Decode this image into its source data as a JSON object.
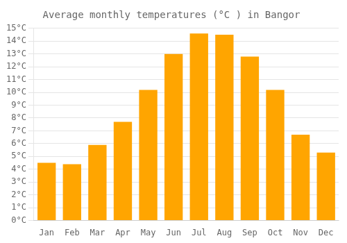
{
  "chart_data": {
    "type": "bar",
    "title": "Average monthly temperatures (°C ) in Bangor",
    "categories": [
      "Jan",
      "Feb",
      "Mar",
      "Apr",
      "May",
      "Jun",
      "Jul",
      "Aug",
      "Sep",
      "Oct",
      "Nov",
      "Dec"
    ],
    "values": [
      4.5,
      4.4,
      5.9,
      7.7,
      10.2,
      13.0,
      14.6,
      14.5,
      12.8,
      10.2,
      6.7,
      5.3
    ],
    "color": "#FFA500",
    "ylim": [
      0,
      15
    ],
    "yticks": [
      {
        "value": 0,
        "label": "0°C"
      },
      {
        "value": 1,
        "label": "1°C"
      },
      {
        "value": 2,
        "label": "2°C"
      },
      {
        "value": 3,
        "label": "3°C"
      },
      {
        "value": 4,
        "label": "4°C"
      },
      {
        "value": 5,
        "label": "5°C"
      },
      {
        "value": 6,
        "label": "6°C"
      },
      {
        "value": 7,
        "label": "7°C"
      },
      {
        "value": 8,
        "label": "8°C"
      },
      {
        "value": 9,
        "label": "9°C"
      },
      {
        "value": 10,
        "label": "10°C"
      },
      {
        "value": 11,
        "label": "11°C"
      },
      {
        "value": 12,
        "label": "12°C"
      },
      {
        "value": 13,
        "label": "13°C"
      },
      {
        "value": 14,
        "label": "14°C"
      },
      {
        "value": 15,
        "label": "15°C"
      }
    ],
    "grid": true
  }
}
